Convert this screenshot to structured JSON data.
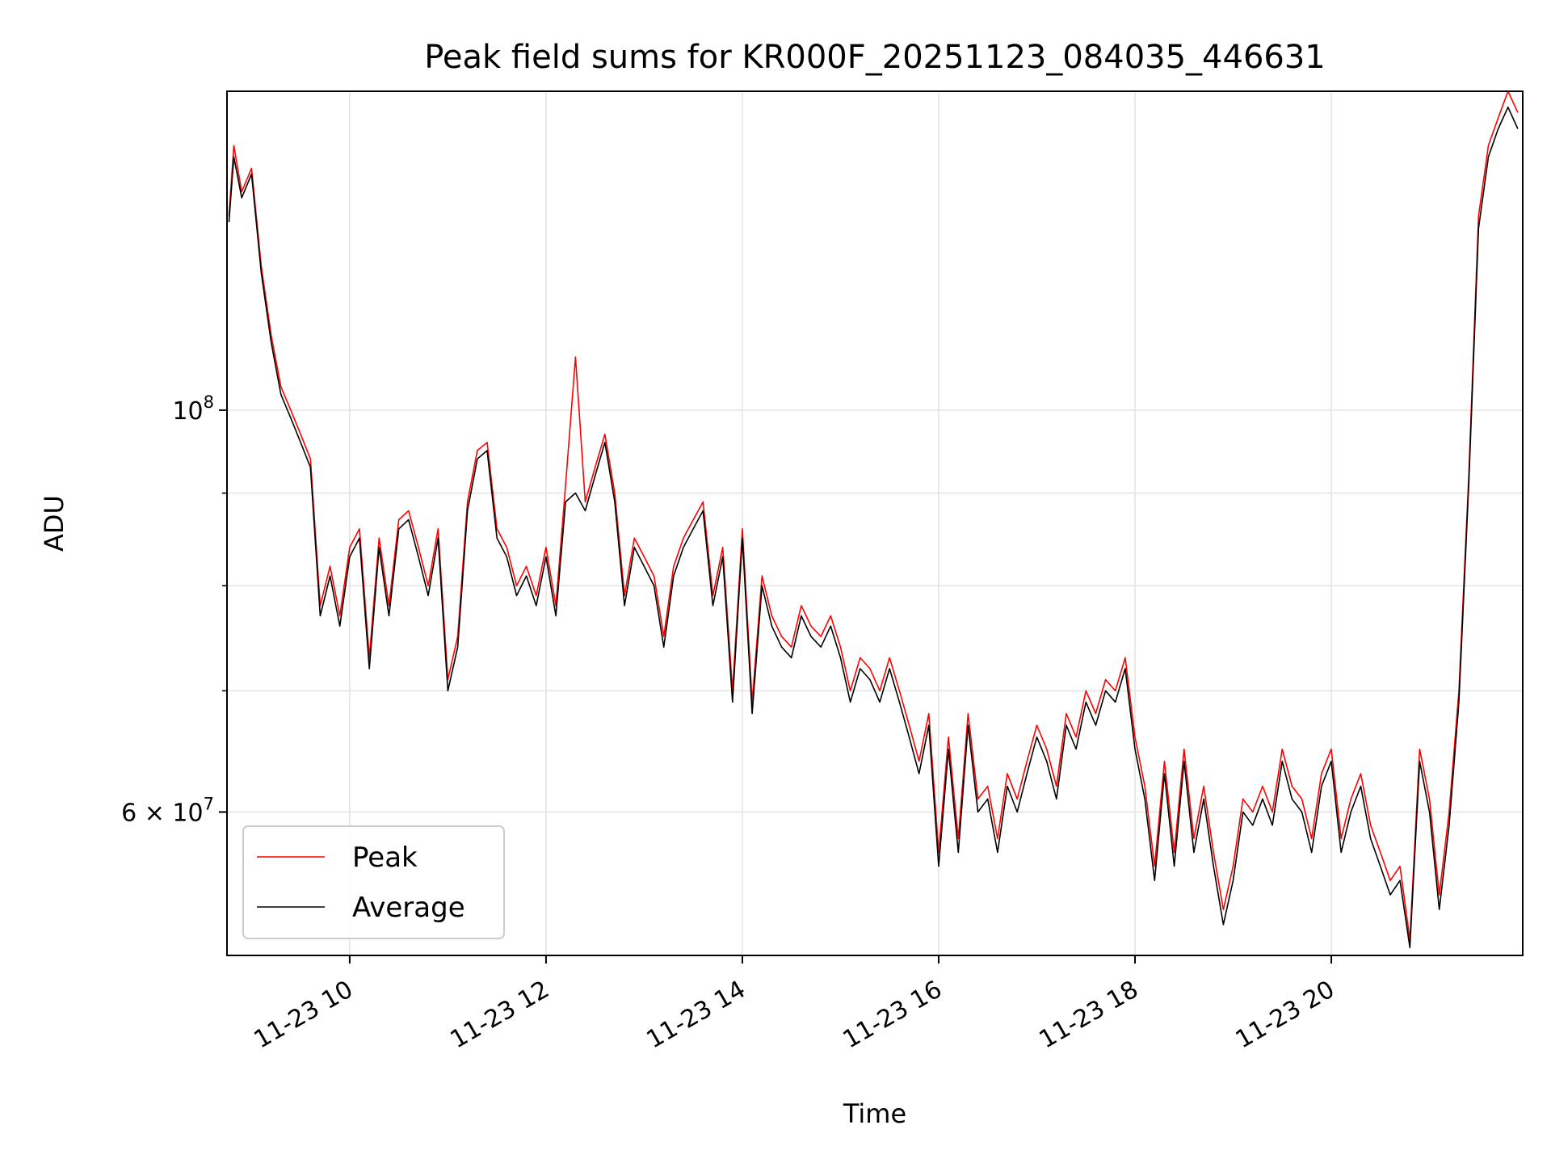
{
  "chart_data": {
    "type": "line",
    "title": "Peak field sums for KR000F_20251123_084035_446631",
    "xlabel": "Time",
    "ylabel": "ADU",
    "yscale": "log",
    "ylim": [
      50000000,
      150000000
    ],
    "xlim_hours": [
      8.75,
      21.95
    ],
    "grid": true,
    "legend_position": "lower-left",
    "x_ticks": [
      {
        "hour": 10,
        "label": "11-23 10"
      },
      {
        "hour": 12,
        "label": "11-23 12"
      },
      {
        "hour": 14,
        "label": "11-23 14"
      },
      {
        "hour": 16,
        "label": "11-23 16"
      },
      {
        "hour": 18,
        "label": "11-23 18"
      },
      {
        "hour": 20,
        "label": "11-23 20"
      }
    ],
    "y_major_ticks": [
      {
        "value": 100000000,
        "base": "10",
        "exp": "8"
      },
      {
        "value": 60000000,
        "base": "6 × 10",
        "exp": "7"
      }
    ],
    "y_minor_ticks": [
      70000000,
      80000000,
      90000000
    ],
    "x_hours": [
      8.77,
      8.82,
      8.9,
      9.0,
      9.1,
      9.2,
      9.3,
      9.4,
      9.5,
      9.6,
      9.7,
      9.8,
      9.9,
      10.0,
      10.1,
      10.2,
      10.3,
      10.4,
      10.5,
      10.6,
      10.7,
      10.8,
      10.9,
      11.0,
      11.1,
      11.2,
      11.3,
      11.4,
      11.5,
      11.6,
      11.7,
      11.8,
      11.9,
      12.0,
      12.1,
      12.2,
      12.3,
      12.4,
      12.5,
      12.6,
      12.7,
      12.8,
      12.9,
      13.0,
      13.1,
      13.2,
      13.3,
      13.4,
      13.5,
      13.6,
      13.7,
      13.8,
      13.9,
      14.0,
      14.1,
      14.2,
      14.3,
      14.4,
      14.5,
      14.6,
      14.7,
      14.8,
      14.9,
      15.0,
      15.1,
      15.2,
      15.3,
      15.4,
      15.5,
      15.6,
      15.7,
      15.8,
      15.9,
      16.0,
      16.1,
      16.2,
      16.3,
      16.4,
      16.5,
      16.6,
      16.7,
      16.8,
      16.9,
      17.0,
      17.1,
      17.2,
      17.3,
      17.4,
      17.5,
      17.6,
      17.7,
      17.8,
      17.9,
      18.0,
      18.1,
      18.2,
      18.3,
      18.4,
      18.5,
      18.6,
      18.7,
      18.8,
      18.9,
      19.0,
      19.1,
      19.2,
      19.3,
      19.4,
      19.5,
      19.6,
      19.7,
      19.8,
      19.9,
      20.0,
      20.1,
      20.2,
      20.3,
      20.4,
      20.5,
      20.6,
      20.7,
      20.8,
      20.9,
      21.0,
      21.1,
      21.2,
      21.3,
      21.4,
      21.5,
      21.6,
      21.7,
      21.8,
      21.9
    ],
    "series": [
      {
        "name": "Peak",
        "color": "#ff0000",
        "values": [
          128000000,
          140000000,
          132000000,
          136000000,
          120000000,
          110000000,
          103000000,
          100000000,
          97000000,
          94000000,
          78000000,
          82000000,
          77000000,
          84000000,
          86000000,
          73000000,
          85000000,
          78000000,
          87000000,
          88000000,
          84000000,
          80000000,
          86000000,
          71000000,
          75000000,
          89000000,
          95000000,
          96000000,
          86000000,
          84000000,
          80000000,
          82000000,
          79000000,
          84000000,
          78000000,
          91000000,
          107000000,
          89000000,
          93000000,
          97000000,
          90000000,
          79000000,
          85000000,
          83000000,
          81000000,
          75000000,
          82000000,
          85000000,
          87000000,
          89000000,
          79000000,
          84000000,
          70000000,
          86000000,
          69000000,
          81000000,
          77000000,
          75000000,
          74000000,
          78000000,
          76000000,
          75000000,
          77000000,
          74000000,
          70000000,
          73000000,
          72000000,
          70000000,
          73000000,
          70000000,
          67000000,
          64000000,
          68000000,
          57000000,
          66000000,
          58000000,
          68000000,
          61000000,
          62000000,
          58000000,
          63000000,
          61000000,
          64000000,
          67000000,
          65000000,
          62000000,
          68000000,
          66000000,
          70000000,
          68000000,
          71000000,
          70000000,
          73000000,
          66000000,
          62000000,
          56000000,
          64000000,
          57000000,
          65000000,
          58000000,
          62000000,
          57000000,
          53000000,
          56000000,
          61000000,
          60000000,
          62000000,
          60000000,
          65000000,
          62000000,
          61000000,
          58000000,
          63000000,
          65000000,
          58000000,
          61000000,
          63000000,
          59000000,
          57000000,
          55000000,
          56000000,
          51000000,
          65000000,
          61000000,
          54000000,
          60000000,
          70000000,
          92000000,
          128000000,
          140000000,
          145000000,
          150000000,
          146000000
        ]
      },
      {
        "name": "Average",
        "color": "#000000",
        "values": [
          127000000,
          138000000,
          131000000,
          135000000,
          119000000,
          109000000,
          102000000,
          99000000,
          96000000,
          93000000,
          77000000,
          81000000,
          76000000,
          83000000,
          85000000,
          72000000,
          84000000,
          77000000,
          86000000,
          87000000,
          83000000,
          79000000,
          85000000,
          70000000,
          74000000,
          88000000,
          94000000,
          95000000,
          85000000,
          83000000,
          79000000,
          81000000,
          78000000,
          83000000,
          77000000,
          89000000,
          90000000,
          88000000,
          92000000,
          96000000,
          89000000,
          78000000,
          84000000,
          82000000,
          80000000,
          74000000,
          81000000,
          84000000,
          86000000,
          88000000,
          78000000,
          83000000,
          69000000,
          85000000,
          68000000,
          80000000,
          76000000,
          74000000,
          73000000,
          77000000,
          75000000,
          74000000,
          76000000,
          73000000,
          69000000,
          72000000,
          71000000,
          69000000,
          72000000,
          69000000,
          66000000,
          63000000,
          67000000,
          56000000,
          65000000,
          57000000,
          67000000,
          60000000,
          61000000,
          57000000,
          62000000,
          60000000,
          63000000,
          66000000,
          64000000,
          61000000,
          67000000,
          65000000,
          69000000,
          67000000,
          70000000,
          69000000,
          72000000,
          65000000,
          61000000,
          55000000,
          63000000,
          56000000,
          64000000,
          57000000,
          61000000,
          56000000,
          52000000,
          55000000,
          60000000,
          59000000,
          61000000,
          59000000,
          64000000,
          61000000,
          60000000,
          57000000,
          62000000,
          64000000,
          57000000,
          60000000,
          62000000,
          58000000,
          56000000,
          54000000,
          55000000,
          50500000,
          64000000,
          60000000,
          53000000,
          59000000,
          69000000,
          91000000,
          126000000,
          138000000,
          143000000,
          147000000,
          143000000
        ]
      }
    ]
  }
}
